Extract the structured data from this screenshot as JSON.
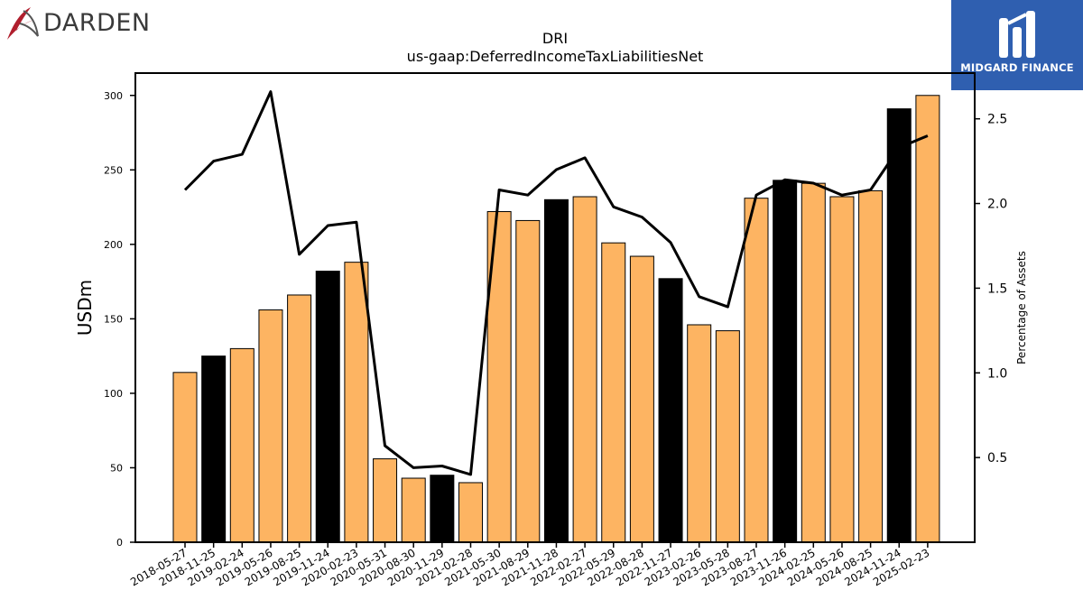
{
  "header": {
    "left_logo_text": "DARDEN",
    "left_logo_icon": "darden-swoosh-icon",
    "right_logo_text": "MIDGARD FINANCE",
    "right_logo_icon": "midgard-m-icon",
    "right_logo_bg": "#2f5fb0"
  },
  "chart_data": {
    "type": "bar",
    "title": "DRI",
    "subtitle": "us-gaap:DeferredIncomeTaxLiabilitiesNet",
    "ylabel": "USDm",
    "y2label": "Percentage of Assets",
    "ylim": [
      0,
      315
    ],
    "y2lim": [
      0,
      2.77
    ],
    "yticks": [
      0,
      50,
      100,
      150,
      200,
      250,
      300
    ],
    "y2ticks": [
      "0.5",
      "1.0",
      "1.5",
      "2.0",
      "2.5"
    ],
    "categories": [
      "2018-05-27",
      "2018-11-25",
      "2019-02-24",
      "2019-05-26",
      "2019-08-25",
      "2019-11-24",
      "2020-02-23",
      "2020-05-31",
      "2020-08-30",
      "2020-11-29",
      "2021-02-28",
      "2021-05-30",
      "2021-08-29",
      "2021-11-28",
      "2022-02-27",
      "2022-05-29",
      "2022-08-28",
      "2022-11-27",
      "2023-02-26",
      "2023-05-28",
      "2023-08-27",
      "2023-11-26",
      "2024-02-25",
      "2024-05-26",
      "2024-08-25",
      "2024-11-24",
      "2025-02-23"
    ],
    "series": [
      {
        "kind": "bar",
        "values": [
          114,
          125,
          130,
          156,
          166,
          182,
          188,
          56,
          43,
          45,
          40,
          222,
          216,
          230,
          232,
          201,
          192,
          177,
          146,
          142,
          231,
          243,
          241,
          232,
          236,
          291,
          300
        ],
        "colors": [
          "#fdb462",
          "#000000",
          "#fdb462",
          "#fdb462",
          "#fdb462",
          "#000000",
          "#fdb462",
          "#fdb462",
          "#fdb462",
          "#000000",
          "#fdb462",
          "#fdb462",
          "#fdb462",
          "#000000",
          "#fdb462",
          "#fdb462",
          "#fdb462",
          "#000000",
          "#fdb462",
          "#fdb462",
          "#fdb462",
          "#000000",
          "#fdb462",
          "#fdb462",
          "#fdb462",
          "#000000",
          "#fdb462"
        ]
      },
      {
        "kind": "line",
        "axis": "right",
        "color": "#000000",
        "values": [
          2.08,
          2.25,
          2.29,
          2.66,
          1.7,
          1.87,
          1.89,
          0.57,
          0.44,
          0.45,
          0.4,
          2.08,
          2.05,
          2.2,
          2.27,
          1.98,
          1.92,
          1.77,
          1.45,
          1.39,
          2.05,
          2.14,
          2.12,
          2.05,
          2.08,
          2.33,
          2.4
        ]
      }
    ],
    "grid": false,
    "legend": "none"
  }
}
